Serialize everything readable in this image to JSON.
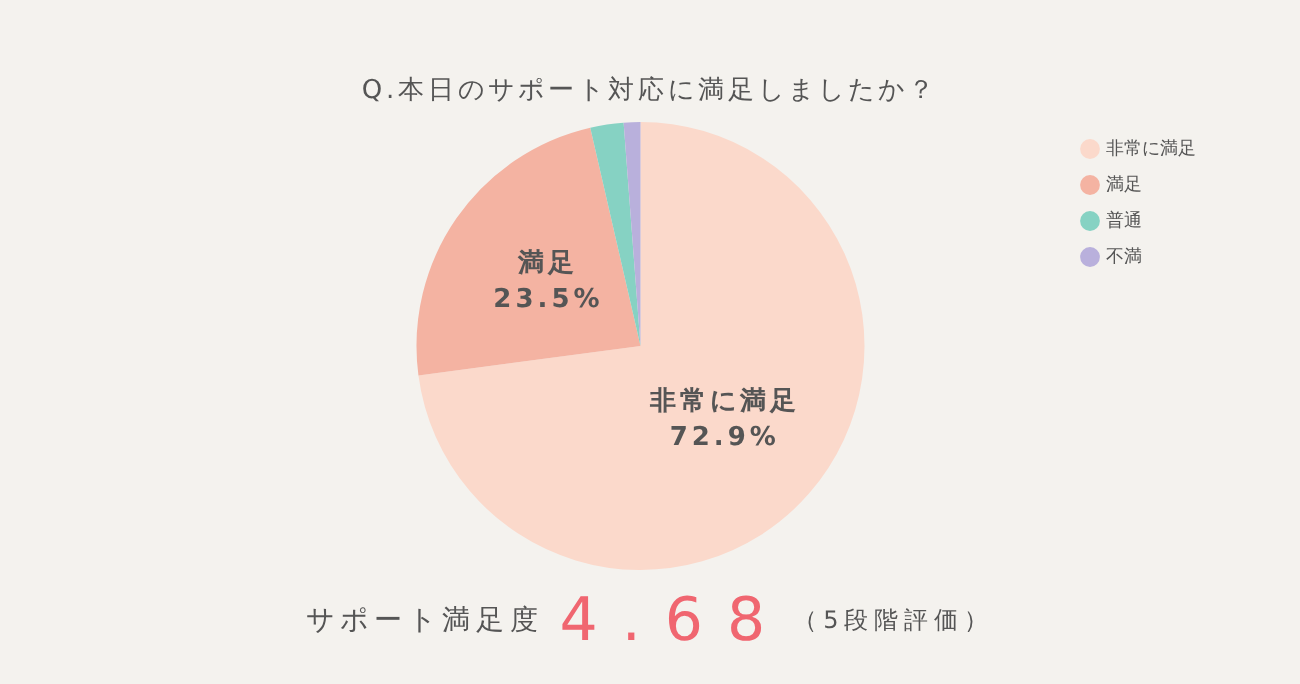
{
  "chart_data": {
    "type": "pie",
    "title": "Q.本日のサポート対応に満足しましたか？",
    "categories": [
      "非常に満足",
      "満足",
      "普通",
      "不満"
    ],
    "values": [
      72.9,
      23.5,
      2.4,
      1.2
    ],
    "colors": [
      "#fbd9cb",
      "#f4b3a2",
      "#86d2c3",
      "#b9b0dc"
    ],
    "value_labels": [
      "72.9%",
      "23.5%",
      null,
      null
    ],
    "legend": "top right",
    "annotations": [
      "サポート満足度",
      "4.68",
      "（5段階評価）"
    ]
  }
}
